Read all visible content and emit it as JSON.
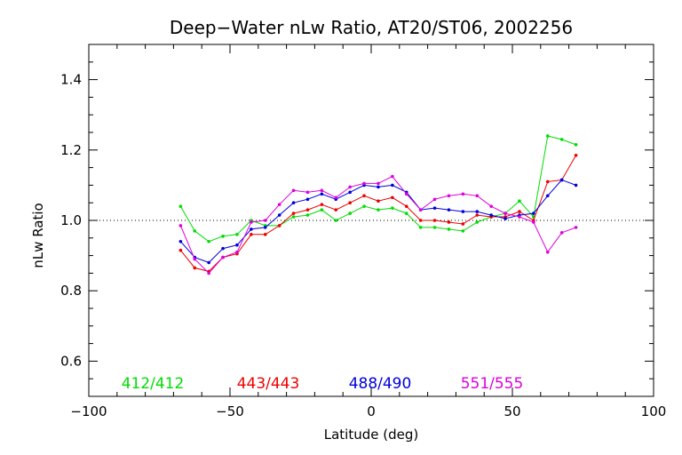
{
  "chart_data": {
    "type": "line",
    "title": "Deep−Water nLw Ratio, AT20/ST06, 2002256",
    "xlabel": "Latitude (deg)",
    "ylabel": "nLw Ratio",
    "xlim": [
      -100,
      100
    ],
    "ylim": [
      0.5,
      1.5
    ],
    "xticks": [
      -100,
      -50,
      0,
      50,
      100
    ],
    "xtick_labels": [
      "−100",
      "−50",
      "0",
      "50",
      "100"
    ],
    "yticks": [
      0.6,
      0.8,
      1.0,
      1.2,
      1.4
    ],
    "ytick_labels": [
      "0.6",
      "0.8",
      "1.0",
      "1.2",
      "1.4"
    ],
    "reference_line": 1.0,
    "x": [
      -67.5,
      -62.5,
      -57.5,
      -52.5,
      -47.5,
      -42.5,
      -37.5,
      -32.5,
      -27.5,
      -22.5,
      -17.5,
      -12.5,
      -7.5,
      -2.5,
      2.5,
      7.5,
      12.5,
      17.5,
      22.5,
      27.5,
      32.5,
      37.5,
      42.5,
      47.5,
      52.5,
      57.5,
      62.5,
      67.5,
      72.5
    ],
    "series": [
      {
        "name": "412/412",
        "color": "#00dd00",
        "values": [
          1.04,
          0.97,
          0.94,
          0.955,
          0.96,
          1.0,
          0.985,
          0.985,
          1.01,
          1.015,
          1.03,
          1.0,
          1.02,
          1.04,
          1.03,
          1.035,
          1.02,
          0.98,
          0.98,
          0.975,
          0.97,
          0.995,
          1.01,
          1.02,
          1.055,
          1.01,
          1.24,
          1.23,
          1.215
        ]
      },
      {
        "name": "443/443",
        "color": "#ee0000",
        "values": [
          0.915,
          0.865,
          0.855,
          0.895,
          0.905,
          0.96,
          0.96,
          0.985,
          1.02,
          1.03,
          1.045,
          1.03,
          1.05,
          1.07,
          1.055,
          1.065,
          1.04,
          1.0,
          1.0,
          0.995,
          0.99,
          1.015,
          1.01,
          1.01,
          1.025,
          1.0,
          1.11,
          1.115,
          1.185
        ]
      },
      {
        "name": "488/490",
        "color": "#0000dd",
        "values": [
          0.94,
          0.895,
          0.88,
          0.92,
          0.93,
          0.975,
          0.98,
          1.015,
          1.05,
          1.06,
          1.075,
          1.06,
          1.08,
          1.1,
          1.095,
          1.1,
          1.08,
          1.03,
          1.035,
          1.03,
          1.025,
          1.025,
          1.015,
          1.005,
          1.015,
          1.02,
          1.07,
          1.115,
          1.1
        ]
      },
      {
        "name": "551/555",
        "color": "#dd00dd",
        "values": [
          0.985,
          0.89,
          0.85,
          0.895,
          0.91,
          0.995,
          1.0,
          1.045,
          1.085,
          1.08,
          1.085,
          1.065,
          1.095,
          1.105,
          1.105,
          1.125,
          1.075,
          1.03,
          1.06,
          1.07,
          1.075,
          1.07,
          1.04,
          1.02,
          1.01,
          0.995,
          0.91,
          0.965,
          0.98
        ]
      }
    ]
  }
}
